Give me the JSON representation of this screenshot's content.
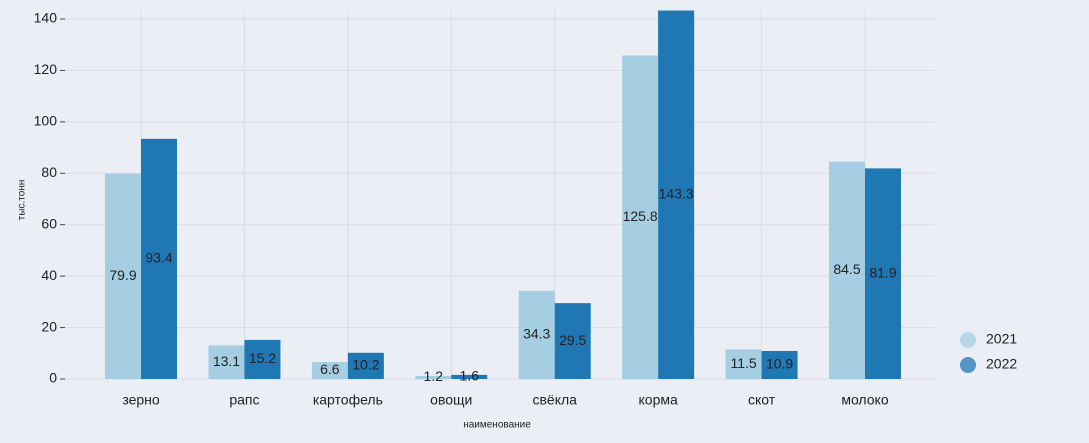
{
  "chart_data": {
    "type": "bar",
    "xlabel": "наименование",
    "ylabel": "тыс.тонн",
    "categories": [
      "зерно",
      "рапс",
      "картофель",
      "овощи",
      "свёкла",
      "корма",
      "скот",
      "молоко"
    ],
    "series": [
      {
        "name": "2021",
        "color": "#a6cee3",
        "values": [
          79.9,
          13.1,
          6.6,
          1.2,
          34.3,
          125.8,
          11.5,
          84.5
        ]
      },
      {
        "name": "2022",
        "color": "#1f78b4",
        "values": [
          93.4,
          15.2,
          10.2,
          1.6,
          29.5,
          143.3,
          10.9,
          81.9
        ]
      }
    ],
    "ylim": [
      0,
      143.5
    ],
    "yticks": [
      0,
      20,
      40,
      60,
      80,
      100,
      120,
      140
    ],
    "grid": true,
    "legend": "right"
  }
}
